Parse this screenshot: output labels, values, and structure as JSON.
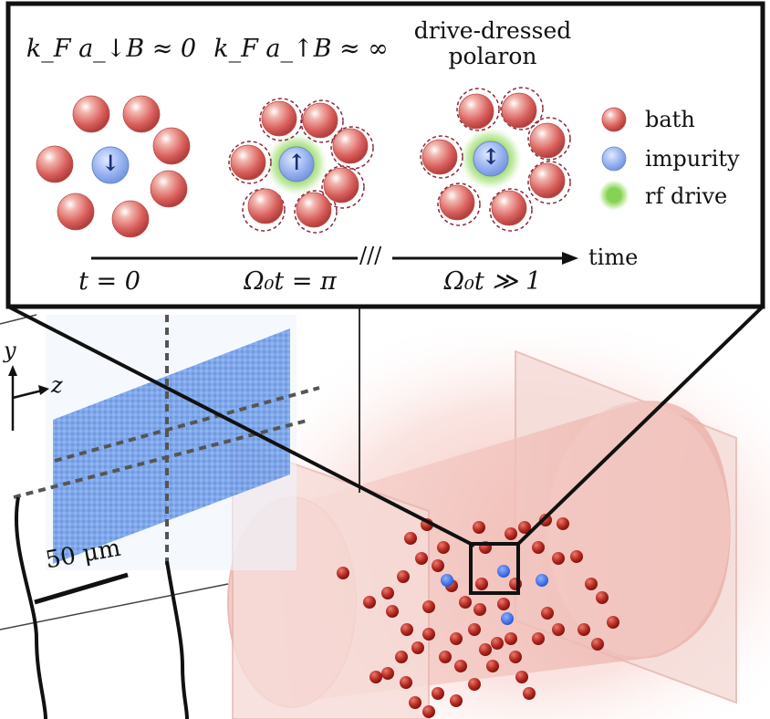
{
  "panel": {
    "stage1_label": "k_F a_↓B ≈ 0",
    "stage2_label": "k_F a_↑B ≈ ∞",
    "stage3_title_line1": "drive-dressed",
    "stage3_title_line2": "polaron",
    "stage1_arrow": "↓",
    "stage2_arrow": "↑",
    "stage3_arrow": "↕"
  },
  "legend": {
    "items": [
      {
        "label": "bath",
        "color": "#d9605c"
      },
      {
        "label": "impurity",
        "color": "#8fa9ea"
      },
      {
        "label": "rf drive",
        "color": "#7fd04a"
      }
    ]
  },
  "timeline": {
    "axis_label": "time",
    "tick1": "t = 0",
    "tick2": "Ω₀t = π",
    "tick3": "Ω₀t ≫ 1",
    "break_mark": "///"
  },
  "image": {
    "axis_y": "y",
    "axis_z": "z",
    "scale_bar": "50 μm"
  },
  "colors": {
    "bath": "#d9605c",
    "impurity": "#8fa9ea",
    "rf_drive": "#7fd04a",
    "cloud": "#4f86e0",
    "trap": "#f2c7c2"
  }
}
